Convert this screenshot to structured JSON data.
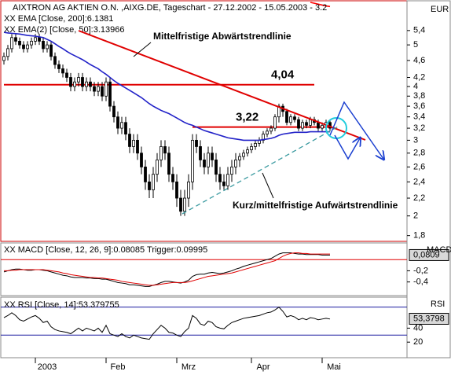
{
  "chart_data": [
    {
      "type": "candlestick",
      "title": "AIXTRON AG AKTIEN O.N. ,AIXG.DE, Tageschart - 27.12.2002 - 15.05.2003 - 3.2",
      "axis_label": "EUR",
      "color": "#000000",
      "categories": [
        null,
        null,
        null,
        null,
        null,
        null,
        null,
        null,
        null,
        null,
        null,
        "2003",
        null,
        null,
        null,
        null,
        null,
        null,
        null,
        null,
        null,
        null,
        null,
        null,
        null,
        null,
        null,
        null,
        null,
        "Feb",
        null,
        null,
        null,
        null,
        null,
        null,
        null,
        null,
        null,
        null,
        null,
        null,
        null,
        null,
        null,
        null,
        null,
        "Mrz",
        null,
        null,
        null,
        null,
        null,
        null,
        null,
        null,
        null,
        null,
        null,
        null,
        null,
        null,
        null,
        null,
        null,
        null,
        "Apr",
        null,
        null,
        null,
        null,
        null,
        null,
        null,
        null,
        null,
        null,
        null,
        null,
        null,
        null,
        null,
        null,
        null,
        "Mai"
      ],
      "open": [
        4.6,
        4.7,
        4.9,
        5.2,
        5.1,
        5.0,
        4.9,
        5.0,
        5.1,
        5.2,
        5.1,
        4.9,
        5.0,
        4.7,
        4.5,
        4.4,
        4.3,
        4.2,
        4.0,
        4.1,
        4.2,
        4.0,
        4.1,
        4.0,
        3.9,
        4.0,
        3.8,
        4.1,
        3.6,
        3.4,
        3.2,
        3.3,
        3.1,
        2.9,
        3.0,
        2.8,
        2.6,
        2.4,
        2.3,
        2.5,
        2.7,
        2.9,
        2.8,
        2.5,
        2.4,
        2.2,
        2.05,
        2.2,
        2.4,
        3.0,
        2.9,
        2.7,
        2.6,
        2.8,
        2.7,
        2.5,
        2.4,
        2.35,
        2.5,
        2.6,
        2.7,
        2.75,
        2.8,
        2.85,
        2.9,
        2.95,
        3.0,
        3.1,
        3.15,
        3.2,
        3.4,
        3.6,
        3.5,
        3.3,
        3.4,
        3.35,
        3.2,
        3.3,
        3.25,
        3.35,
        3.3,
        3.2,
        3.25,
        3.3,
        null
      ],
      "high": [
        4.8,
        5.0,
        5.3,
        5.3,
        5.2,
        5.1,
        5.1,
        5.2,
        5.3,
        5.3,
        5.2,
        5.1,
        5.1,
        4.8,
        4.6,
        4.5,
        4.4,
        4.3,
        4.2,
        4.3,
        4.3,
        4.2,
        4.2,
        4.1,
        4.1,
        4.1,
        4.2,
        4.2,
        3.7,
        3.5,
        3.4,
        3.4,
        3.2,
        3.1,
        3.1,
        2.9,
        2.7,
        2.5,
        2.6,
        2.8,
        3.0,
        3.0,
        2.9,
        2.6,
        2.5,
        2.3,
        2.3,
        2.5,
        3.1,
        3.1,
        3.0,
        2.8,
        2.9,
        2.9,
        2.8,
        2.6,
        2.5,
        2.6,
        2.7,
        2.8,
        2.8,
        2.85,
        2.9,
        2.95,
        3.0,
        3.05,
        3.15,
        3.2,
        3.25,
        3.45,
        3.65,
        3.65,
        3.55,
        3.45,
        3.45,
        3.4,
        3.35,
        3.35,
        3.4,
        3.4,
        3.35,
        3.3,
        3.35,
        3.35,
        null
      ],
      "low": [
        4.5,
        4.6,
        4.8,
        5.0,
        4.9,
        4.8,
        4.8,
        4.9,
        5.0,
        5.0,
        4.8,
        4.8,
        4.6,
        4.4,
        4.3,
        4.2,
        4.1,
        3.9,
        3.9,
        4.0,
        3.9,
        3.9,
        3.9,
        3.8,
        3.8,
        3.7,
        3.7,
        3.5,
        3.3,
        3.1,
        3.1,
        3.0,
        2.8,
        2.8,
        2.7,
        2.5,
        2.3,
        2.2,
        2.2,
        2.4,
        2.6,
        2.7,
        2.4,
        2.3,
        2.1,
        2.0,
        2.0,
        2.1,
        2.3,
        2.8,
        2.6,
        2.5,
        2.5,
        2.6,
        2.4,
        2.3,
        2.3,
        2.3,
        2.4,
        2.5,
        2.6,
        2.7,
        2.75,
        2.8,
        2.85,
        2.9,
        2.95,
        3.05,
        3.1,
        3.15,
        3.3,
        3.4,
        3.25,
        3.25,
        3.3,
        3.15,
        3.15,
        3.2,
        3.2,
        3.25,
        3.15,
        3.15,
        3.2,
        3.15,
        null
      ],
      "close": [
        4.7,
        4.9,
        5.2,
        5.1,
        5.0,
        4.9,
        5.0,
        5.1,
        5.2,
        5.1,
        4.9,
        5.0,
        4.7,
        4.5,
        4.4,
        4.3,
        4.2,
        4.0,
        4.1,
        4.2,
        4.0,
        4.1,
        4.0,
        3.9,
        4.0,
        3.8,
        4.1,
        3.6,
        3.4,
        3.2,
        3.3,
        3.1,
        2.9,
        3.0,
        2.8,
        2.6,
        2.4,
        2.3,
        2.5,
        2.7,
        2.9,
        2.8,
        2.5,
        2.4,
        2.2,
        2.05,
        2.2,
        2.4,
        3.0,
        2.9,
        2.7,
        2.6,
        2.8,
        2.7,
        2.5,
        2.4,
        2.35,
        2.5,
        2.6,
        2.7,
        2.75,
        2.8,
        2.85,
        2.9,
        2.95,
        3.0,
        3.1,
        3.15,
        3.2,
        3.4,
        3.6,
        3.5,
        3.3,
        3.4,
        3.35,
        3.2,
        3.3,
        3.25,
        3.35,
        3.3,
        3.2,
        3.25,
        3.3,
        3.2,
        null
      ],
      "series": [
        {
          "name": "XX EMA [Close, 200]:6.1381",
          "color": "#ff0000",
          "values": [
            null,
            null,
            null,
            null,
            null,
            null,
            null,
            null,
            null,
            null,
            null,
            null,
            null,
            null,
            null,
            null,
            null,
            null,
            null,
            null,
            null,
            null,
            null,
            null,
            null,
            null,
            null,
            null,
            null,
            null,
            null,
            null,
            null,
            null,
            null,
            null,
            null,
            null,
            null,
            null,
            null,
            null,
            null,
            null,
            null,
            null,
            null,
            null,
            null,
            null,
            null,
            null,
            null,
            null,
            null,
            null,
            null,
            null,
            null,
            null,
            null,
            null,
            null,
            null,
            null,
            null,
            null,
            null,
            null,
            null,
            null,
            null,
            null,
            null,
            null,
            null,
            null,
            null,
            6.28,
            6.25,
            6.22,
            6.19,
            6.16,
            6.14,
            null
          ]
        },
        {
          "name": "XX EMA(2) [Close, 50]:3.13966",
          "color": "#2222c8",
          "values": [
            5.35,
            5.33,
            5.32,
            5.31,
            5.3,
            5.28,
            5.26,
            5.25,
            5.24,
            5.22,
            5.2,
            5.15,
            5.1,
            5.03,
            4.96,
            4.9,
            4.83,
            4.77,
            4.72,
            4.67,
            4.62,
            4.56,
            4.5,
            4.45,
            4.4,
            4.33,
            4.27,
            4.2,
            4.13,
            4.07,
            4.02,
            3.97,
            3.92,
            3.87,
            3.82,
            3.77,
            3.71,
            3.65,
            3.6,
            3.56,
            3.52,
            3.49,
            3.46,
            3.42,
            3.38,
            3.34,
            3.3,
            3.27,
            3.25,
            3.22,
            3.19,
            3.16,
            3.14,
            3.12,
            3.1,
            3.08,
            3.06,
            3.04,
            3.03,
            3.02,
            3.01,
            3.0,
            3.0,
            3.0,
            3.0,
            3.0,
            3.01,
            3.02,
            3.03,
            3.05,
            3.08,
            3.1,
            3.11,
            3.12,
            3.13,
            3.13,
            3.13,
            3.13,
            3.14,
            3.14,
            3.14,
            3.14,
            3.14,
            3.14,
            null
          ]
        }
      ],
      "log_scale": true,
      "ylim": [
        1.76,
        6.28
      ],
      "yticks": [
        {
          "value": 5.4,
          "label": "5,4"
        },
        5,
        {
          "value": 4.6,
          "label": "4,6"
        },
        {
          "value": 4.2,
          "label": "4,2"
        },
        4,
        {
          "value": 3.8,
          "label": "3,8"
        },
        {
          "value": 3.6,
          "label": "3,6"
        },
        {
          "value": 3.4,
          "label": "3,4"
        },
        {
          "value": 3.2,
          "label": "3,2"
        },
        3,
        {
          "value": 2.8,
          "label": "2,8"
        },
        {
          "value": 2.6,
          "label": "2,6"
        },
        {
          "value": 2.4,
          "label": "2,4"
        },
        {
          "value": 2.2,
          "label": "2,2"
        },
        2,
        {
          "value": 1.8,
          "label": "1,8"
        }
      ],
      "hlines": [
        {
          "value": 4.04,
          "label": "4,04"
        },
        {
          "value": 3.22,
          "label": "3,22"
        }
      ],
      "hline_color": "#e00000",
      "annotations": [
        "Mittelfristige Abwärtstrendlinie",
        "Kurz/mittelfristige Aufwärtstrendlinie"
      ]
    },
    {
      "type": "line",
      "title": "XX MACD [Close, 12, 26, 9]:0.08085 Trigger:0.09995",
      "axis_label": "MACD",
      "series": [
        {
          "color": "#000000",
          "values": [
            -0.22,
            -0.2,
            -0.18,
            -0.17,
            -0.17,
            -0.18,
            -0.19,
            -0.19,
            -0.18,
            -0.18,
            -0.19,
            -0.2,
            -0.22,
            -0.24,
            -0.26,
            -0.28,
            -0.29,
            -0.31,
            -0.32,
            -0.32,
            -0.32,
            -0.33,
            -0.33,
            -0.34,
            -0.34,
            -0.35,
            -0.35,
            -0.37,
            -0.39,
            -0.41,
            -0.42,
            -0.43,
            -0.45,
            -0.45,
            -0.46,
            -0.47,
            -0.48,
            -0.48,
            -0.46,
            -0.44,
            -0.41,
            -0.39,
            -0.39,
            -0.4,
            -0.41,
            -0.42,
            -0.4,
            -0.37,
            -0.3,
            -0.27,
            -0.26,
            -0.26,
            -0.24,
            -0.23,
            -0.24,
            -0.25,
            -0.24,
            -0.22,
            -0.2,
            -0.17,
            -0.15,
            -0.12,
            -0.1,
            -0.08,
            -0.06,
            -0.04,
            -0.02,
            0.0,
            0.02,
            0.06,
            0.1,
            0.12,
            0.12,
            0.12,
            0.11,
            0.1,
            0.1,
            0.09,
            0.09,
            0.09,
            0.09,
            0.08,
            0.08,
            0.08,
            null
          ]
        },
        {
          "color": "#e00000",
          "values": [
            -0.2,
            -0.2,
            -0.19,
            -0.19,
            -0.18,
            -0.18,
            -0.18,
            -0.18,
            -0.18,
            -0.18,
            -0.18,
            -0.19,
            -0.2,
            -0.21,
            -0.22,
            -0.24,
            -0.25,
            -0.27,
            -0.28,
            -0.29,
            -0.3,
            -0.31,
            -0.32,
            -0.32,
            -0.33,
            -0.33,
            -0.34,
            -0.35,
            -0.36,
            -0.37,
            -0.39,
            -0.4,
            -0.41,
            -0.42,
            -0.43,
            -0.44,
            -0.45,
            -0.46,
            -0.46,
            -0.45,
            -0.44,
            -0.43,
            -0.42,
            -0.41,
            -0.41,
            -0.41,
            -0.41,
            -0.4,
            -0.38,
            -0.36,
            -0.34,
            -0.32,
            -0.3,
            -0.29,
            -0.28,
            -0.27,
            -0.26,
            -0.25,
            -0.24,
            -0.22,
            -0.2,
            -0.18,
            -0.16,
            -0.14,
            -0.12,
            -0.1,
            -0.08,
            -0.06,
            -0.04,
            -0.02,
            0.02,
            0.06,
            0.09,
            0.11,
            0.12,
            0.12,
            0.11,
            0.11,
            0.1,
            0.1,
            0.1,
            0.1,
            0.1,
            0.1,
            null
          ]
        }
      ],
      "ylim": [
        -0.63,
        0.27
      ],
      "yticks": [
        {
          "value": -0.2,
          "label": "-0,2"
        },
        {
          "value": -0.4,
          "label": "-0,4"
        }
      ],
      "current_value": {
        "value": 0.0809,
        "label": "0,0809"
      },
      "hlines": [
        0
      ],
      "hline_color": "#e00000"
    },
    {
      "type": "line",
      "title": "XX RSI [Close, 14]:53.379755",
      "axis_label": "RSI",
      "series": [
        {
          "color": "#000000",
          "values": [
            55,
            58,
            62,
            58,
            52,
            50,
            53,
            56,
            58,
            54,
            48,
            50,
            42,
            38,
            36,
            35,
            34,
            32,
            36,
            40,
            36,
            40,
            38,
            36,
            40,
            34,
            44,
            32,
            30,
            28,
            32,
            28,
            26,
            30,
            28,
            26,
            25,
            24,
            32,
            38,
            44,
            40,
            34,
            33,
            30,
            28,
            35,
            40,
            58,
            54,
            46,
            44,
            50,
            48,
            42,
            40,
            39,
            44,
            48,
            50,
            52,
            54,
            55,
            56,
            57,
            58,
            60,
            62,
            63,
            66,
            70,
            64,
            56,
            58,
            56,
            52,
            54,
            52,
            55,
            54,
            52,
            53,
            54,
            53,
            null
          ]
        }
      ],
      "ylim": [
        0,
        82
      ],
      "yticks": [
        40,
        20
      ],
      "current_value": {
        "value": 53.3798,
        "label": "53,3798"
      },
      "hlines": [
        70,
        30
      ],
      "hline_color": "#1a1aa0"
    }
  ]
}
